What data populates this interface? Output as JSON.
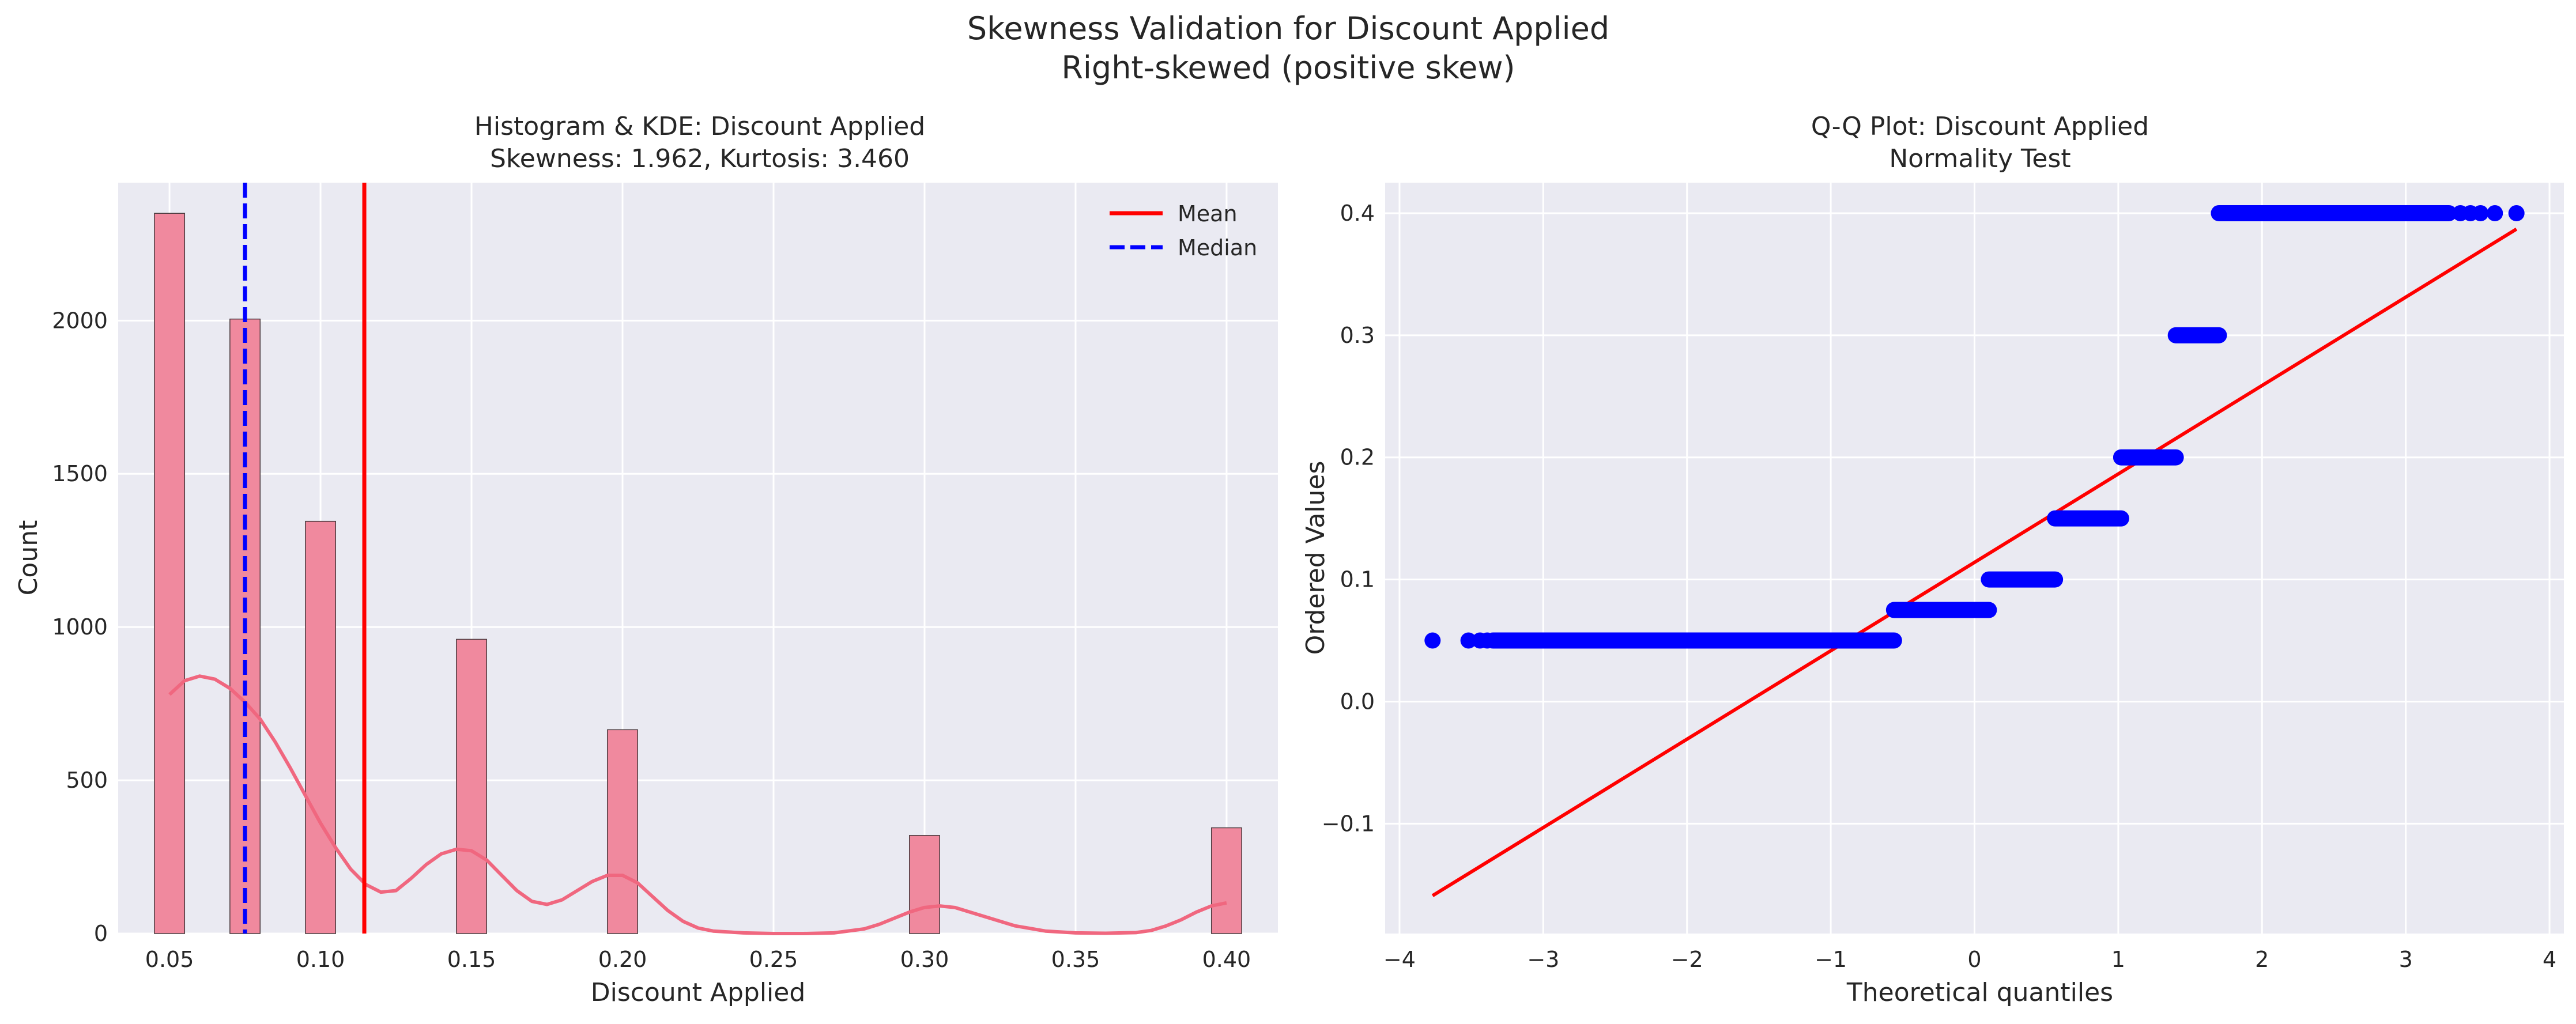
{
  "suptitle": {
    "line1": "Skewness Validation for Discount Applied",
    "line2": "Right-skewed (positive skew)"
  },
  "colors": {
    "panel_bg": "#EAEAF2",
    "grid": "#FFFFFF",
    "hist_fill": "#F0899E",
    "hist_edge": "#4a3a3e",
    "kde": "#F0677F",
    "mean": "#FF0000",
    "median": "#0000FF",
    "qq_points": "#0000FF",
    "qq_line": "#FF0000"
  },
  "chart_data": [
    {
      "type": "bar",
      "title_line1": "Histogram & KDE: Discount Applied",
      "title_line2": "Skewness: 1.962, Kurtosis: 3.460",
      "xlabel": "Discount Applied",
      "ylabel": "Count",
      "xlim": [
        0.033,
        0.417
      ],
      "ylim": [
        0,
        2450
      ],
      "xticks": [
        0.05,
        0.1,
        0.15,
        0.2,
        0.25,
        0.3,
        0.35,
        0.4
      ],
      "xtick_labels": [
        "0.05",
        "0.10",
        "0.15",
        "0.20",
        "0.25",
        "0.30",
        "0.35",
        "0.40"
      ],
      "yticks": [
        0,
        500,
        1000,
        1500,
        2000
      ],
      "ytick_labels": [
        "0",
        "500",
        "1000",
        "1500",
        "2000"
      ],
      "bin_width": 0.01,
      "bars": [
        {
          "x": 0.05,
          "count": 2350
        },
        {
          "x": 0.075,
          "count": 2005
        },
        {
          "x": 0.1,
          "count": 1345
        },
        {
          "x": 0.15,
          "count": 960
        },
        {
          "x": 0.2,
          "count": 665
        },
        {
          "x": 0.3,
          "count": 320
        },
        {
          "x": 0.4,
          "count": 345
        }
      ],
      "kde": {
        "x": [
          0.05,
          0.055,
          0.06,
          0.065,
          0.07,
          0.075,
          0.08,
          0.085,
          0.09,
          0.095,
          0.1,
          0.105,
          0.11,
          0.115,
          0.12,
          0.125,
          0.13,
          0.135,
          0.14,
          0.145,
          0.15,
          0.155,
          0.16,
          0.165,
          0.17,
          0.175,
          0.18,
          0.185,
          0.19,
          0.195,
          0.2,
          0.205,
          0.21,
          0.215,
          0.22,
          0.225,
          0.23,
          0.24,
          0.25,
          0.26,
          0.27,
          0.28,
          0.285,
          0.29,
          0.295,
          0.3,
          0.305,
          0.31,
          0.315,
          0.32,
          0.33,
          0.34,
          0.35,
          0.36,
          0.37,
          0.375,
          0.38,
          0.385,
          0.39,
          0.395,
          0.4
        ],
        "y": [
          780,
          825,
          840,
          830,
          800,
          755,
          700,
          625,
          540,
          450,
          360,
          280,
          210,
          160,
          135,
          140,
          180,
          225,
          260,
          275,
          270,
          240,
          190,
          140,
          105,
          95,
          110,
          140,
          170,
          190,
          190,
          165,
          120,
          75,
          40,
          18,
          8,
          2,
          0,
          0,
          2,
          15,
          30,
          50,
          70,
          85,
          90,
          85,
          70,
          55,
          25,
          8,
          2,
          1,
          3,
          10,
          25,
          45,
          70,
          90,
          100
        ]
      },
      "lines": [
        {
          "name": "Mean",
          "x": 0.1145,
          "style": "solid"
        },
        {
          "name": "Median",
          "x": 0.075,
          "style": "dashed"
        }
      ],
      "legend": {
        "placement": "top-right",
        "entries": [
          "Mean",
          "Median"
        ]
      }
    },
    {
      "type": "scatter",
      "title_line1": "Q-Q Plot: Discount Applied",
      "title_line2": "Normality Test",
      "xlabel": "Theoretical quantiles",
      "ylabel": "Ordered Values",
      "xlim": [
        -4.1,
        4.1
      ],
      "ylim": [
        -0.19,
        0.425
      ],
      "xticks": [
        -4,
        -3,
        -2,
        -1,
        0,
        1,
        2,
        3,
        4
      ],
      "xtick_labels": [
        "−4",
        "−3",
        "−2",
        "−1",
        "0",
        "1",
        "2",
        "3",
        "4"
      ],
      "yticks": [
        -0.1,
        0.0,
        0.1,
        0.2,
        0.3,
        0.4
      ],
      "ytick_labels": [
        "−0.1",
        "0.0",
        "0.1",
        "0.2",
        "0.3",
        "0.4"
      ],
      "segments": [
        {
          "y": 0.05,
          "x_from": -3.35,
          "x_to": -0.56,
          "isolated": [
            -3.77,
            -3.52,
            -3.44,
            -3.39
          ]
        },
        {
          "y": 0.075,
          "x_from": -0.56,
          "x_to": 0.1,
          "isolated": []
        },
        {
          "y": 0.1,
          "x_from": 0.1,
          "x_to": 0.56,
          "isolated": []
        },
        {
          "y": 0.15,
          "x_from": 0.56,
          "x_to": 1.02,
          "isolated": []
        },
        {
          "y": 0.2,
          "x_from": 1.02,
          "x_to": 1.4,
          "isolated": []
        },
        {
          "y": 0.3,
          "x_from": 1.4,
          "x_to": 1.7,
          "isolated": []
        },
        {
          "y": 0.4,
          "x_from": 1.7,
          "x_to": 3.3,
          "isolated": [
            3.38,
            3.45,
            3.52,
            3.62,
            3.77
          ]
        }
      ],
      "fit_line": {
        "x": [
          -3.77,
          3.77
        ],
        "y": [
          -0.159,
          0.387
        ]
      }
    }
  ]
}
